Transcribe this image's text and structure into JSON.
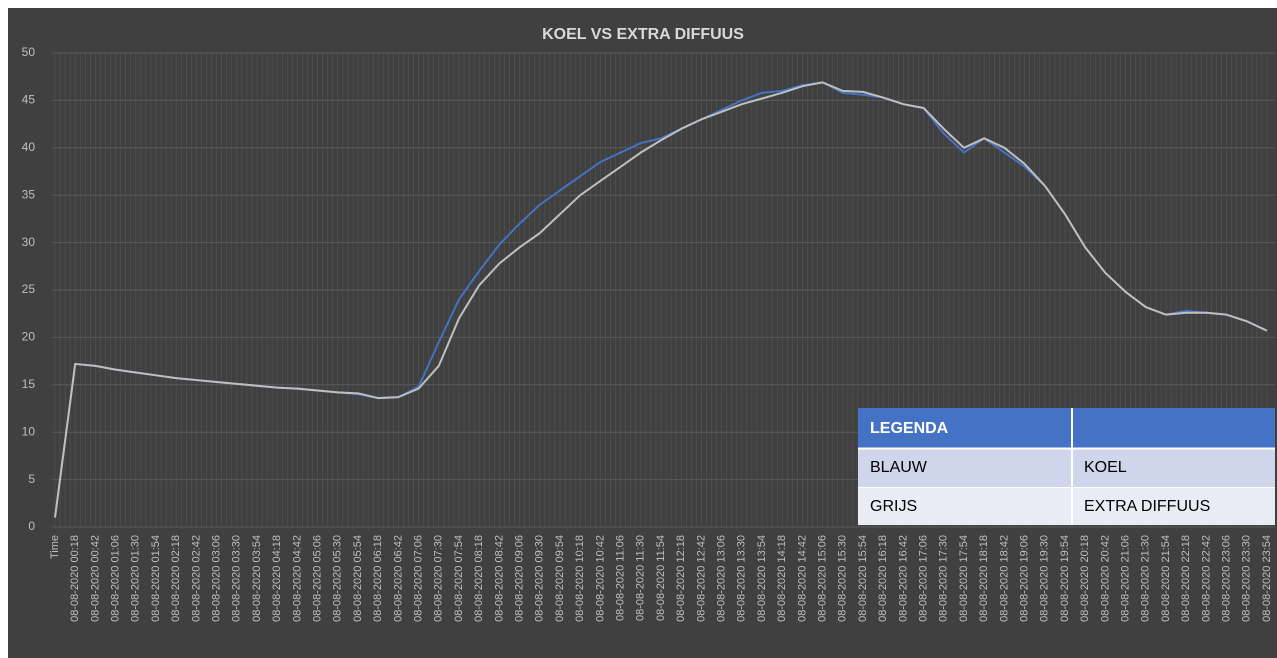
{
  "chart_data": {
    "type": "line",
    "title": "KOEL VS EXTRA DIFFUUS",
    "categories": [
      "Time",
      "08-08-2020 00:18",
      "08-08-2020 00:42",
      "08-08-2020 01:06",
      "08-08-2020 01:30",
      "08-08-2020 01:54",
      "08-08-2020 02:18",
      "08-08-2020 02:42",
      "08-08-2020 03:06",
      "08-08-2020 03:30",
      "08-08-2020 03:54",
      "08-08-2020 04:18",
      "08-08-2020 04:42",
      "08-08-2020 05:06",
      "08-08-2020 05:30",
      "08-08-2020 05:54",
      "08-08-2020 06:18",
      "08-08-2020 06:42",
      "08-08-2020 07:06",
      "08-08-2020 07:30",
      "08-08-2020 07:54",
      "08-08-2020 08:18",
      "08-08-2020 08:42",
      "08-08-2020 09:06",
      "08-08-2020 09:30",
      "08-08-2020 09:54",
      "08-08-2020 10:18",
      "08-08-2020 10:42",
      "08-08-2020 11:06",
      "08-08-2020 11:30",
      "08-08-2020 11:54",
      "08-08-2020 12:18",
      "08-08-2020 12:42",
      "08-08-2020 13:06",
      "08-08-2020 13:30",
      "08-08-2020 13:54",
      "08-08-2020 14:18",
      "08-08-2020 14:42",
      "08-08-2020 15:06",
      "08-08-2020 15:30",
      "08-08-2020 15:54",
      "08-08-2020 16:18",
      "08-08-2020 16:42",
      "08-08-2020 17:06",
      "08-08-2020 17:30",
      "08-08-2020 17:54",
      "08-08-2020 18:18",
      "08-08-2020 18:42",
      "08-08-2020 19:06",
      "08-08-2020 19:30",
      "08-08-2020 19:54",
      "08-08-2020 20:18",
      "08-08-2020 20:42",
      "08-08-2020 21:06",
      "08-08-2020 21:30",
      "08-08-2020 21:54",
      "08-08-2020 22:18",
      "08-08-2020 22:42",
      "08-08-2020 23:06",
      "08-08-2020 23:30",
      "08-08-2020 23:54"
    ],
    "series": [
      {
        "name": "KOEL",
        "color": "#4472c4",
        "values": [
          1,
          17.2,
          17.0,
          16.6,
          16.3,
          16.0,
          15.7,
          15.5,
          15.3,
          15.1,
          14.9,
          14.7,
          14.6,
          14.4,
          14.2,
          14.0,
          13.6,
          13.7,
          14.8,
          19.5,
          24,
          27,
          29.8,
          32,
          34,
          35.5,
          37,
          38.5,
          39.5,
          40.5,
          41,
          42,
          43,
          44,
          45,
          45.8,
          46,
          46.6,
          46.9,
          45.8,
          45.6,
          45.3,
          44.6,
          44.2,
          41.5,
          39.5,
          41,
          39.5,
          38,
          36,
          33,
          29.5,
          26.8,
          24.8,
          23.2,
          22.4,
          22.8,
          22.6,
          22.4,
          21.7,
          20.7
        ]
      },
      {
        "name": "EXTRA DIFFUUS",
        "color": "#bfbfbf",
        "values": [
          1,
          17.2,
          17.0,
          16.6,
          16.3,
          16.0,
          15.7,
          15.5,
          15.3,
          15.1,
          14.9,
          14.7,
          14.6,
          14.4,
          14.2,
          14.1,
          13.6,
          13.7,
          14.6,
          17,
          22,
          25.5,
          27.8,
          29.5,
          31,
          33,
          35,
          36.5,
          38,
          39.5,
          40.8,
          42,
          43,
          43.8,
          44.6,
          45.2,
          45.8,
          46.5,
          46.9,
          46.0,
          45.9,
          45.3,
          44.6,
          44.2,
          42,
          40,
          41,
          40,
          38.3,
          36,
          33,
          29.5,
          26.8,
          24.8,
          23.2,
          22.4,
          22.6,
          22.6,
          22.4,
          21.7,
          20.7
        ]
      }
    ],
    "ylim": [
      0,
      50
    ],
    "yticks": [
      0,
      5,
      10,
      15,
      20,
      25,
      30,
      35,
      40,
      45,
      50
    ],
    "grid": true,
    "legend": {
      "title": "LEGENDA",
      "labels": [
        "BLAUW",
        "GRIJS"
      ]
    }
  }
}
